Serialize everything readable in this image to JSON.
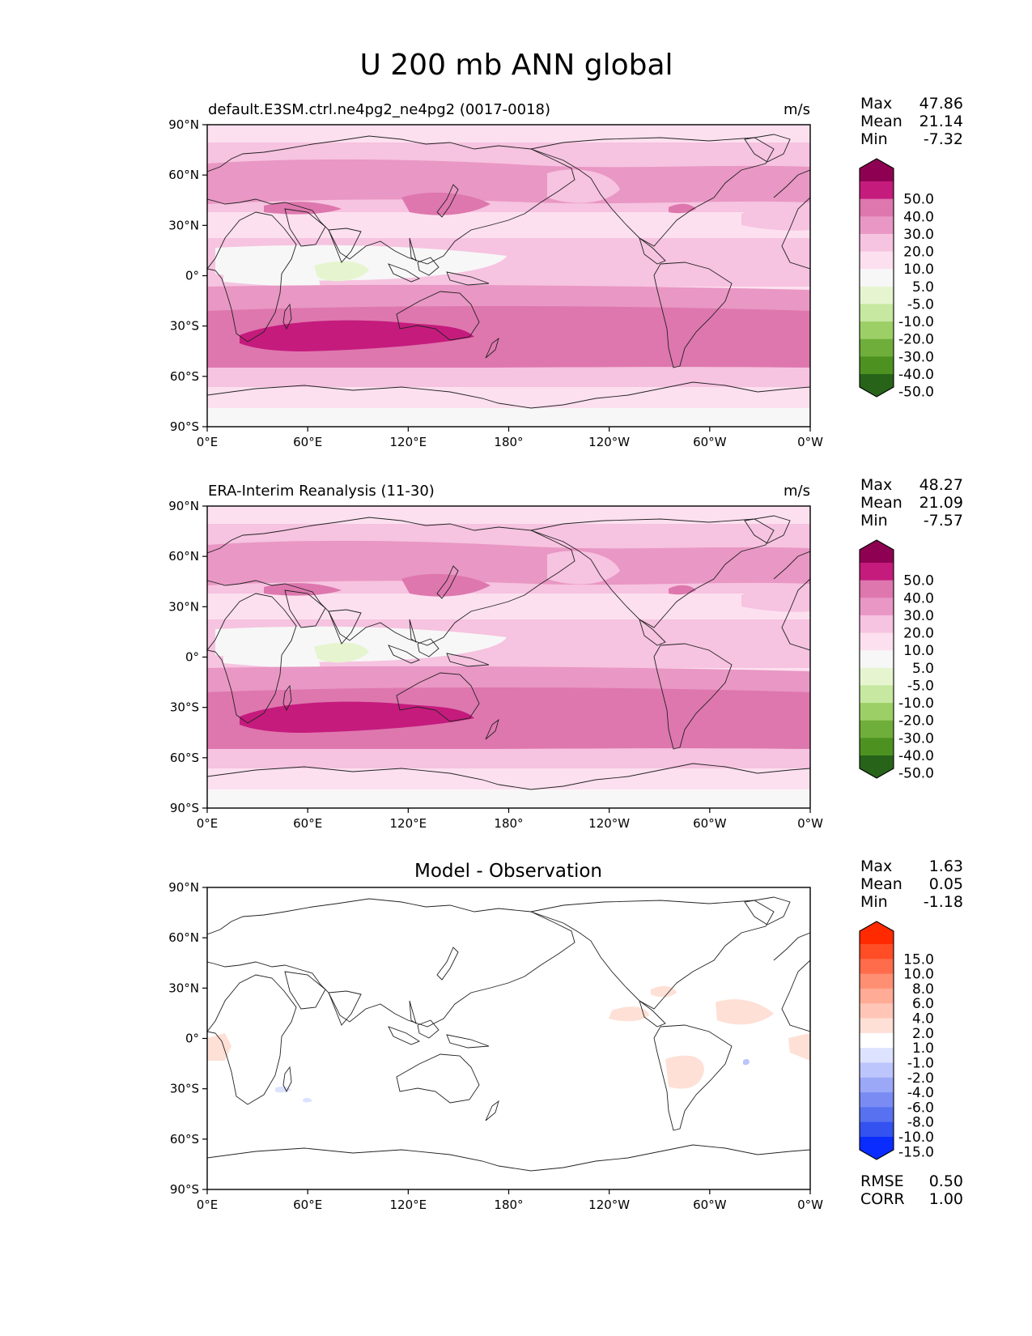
{
  "title": "U 200 mb ANN global",
  "x_ticks": [
    "0°E",
    "60°E",
    "120°E",
    "180°",
    "120°W",
    "60°W",
    "0°W"
  ],
  "y_ticks": [
    "90°N",
    "60°N",
    "30°N",
    "0°",
    "30°S",
    "60°S",
    "90°S"
  ],
  "stat_labels": {
    "max": "Max",
    "mean": "Mean",
    "min": "Min",
    "rmse": "RMSE",
    "corr": "CORR"
  },
  "chart_data": [
    {
      "type": "heatmap",
      "title": "default.E3SM.ctrl.ne4pg2_ne4pg2 (0017-0018)",
      "units": "m/s",
      "xlim": [
        0,
        360
      ],
      "ylim": [
        -90,
        90
      ],
      "stats": {
        "max": "47.86",
        "mean": "21.14",
        "min": "-7.32"
      },
      "colorbar": {
        "labels": [
          "50.0",
          "40.0",
          "30.0",
          "20.0",
          "10.0",
          "5.0",
          "-5.0",
          "-10.0",
          "-20.0",
          "-30.0",
          "-40.0",
          "-50.0"
        ],
        "colors": [
          "#8e0152",
          "#c51b7d",
          "#de77ae",
          "#e997c4",
          "#f6c3e0",
          "#fde0ef",
          "#f7f7f7",
          "#e6f5d0",
          "#c6e8a0",
          "#9cd067",
          "#6fae3a",
          "#4d9221",
          "#276419"
        ]
      }
    },
    {
      "type": "heatmap",
      "title": "ERA-Interim Reanalysis (11-30)",
      "units": "m/s",
      "xlim": [
        0,
        360
      ],
      "ylim": [
        -90,
        90
      ],
      "stats": {
        "max": "48.27",
        "mean": "21.09",
        "min": "-7.57"
      },
      "colorbar": {
        "labels": [
          "50.0",
          "40.0",
          "30.0",
          "20.0",
          "10.0",
          "5.0",
          "-5.0",
          "-10.0",
          "-20.0",
          "-30.0",
          "-40.0",
          "-50.0"
        ],
        "colors": [
          "#8e0152",
          "#c51b7d",
          "#de77ae",
          "#e997c4",
          "#f6c3e0",
          "#fde0ef",
          "#f7f7f7",
          "#e6f5d0",
          "#c6e8a0",
          "#9cd067",
          "#6fae3a",
          "#4d9221",
          "#276419"
        ]
      }
    },
    {
      "type": "heatmap",
      "title": "Model - Observation",
      "units": "",
      "xlim": [
        0,
        360
      ],
      "ylim": [
        -90,
        90
      ],
      "stats": {
        "max": "1.63",
        "mean": "0.05",
        "min": "-1.18",
        "rmse": "0.50",
        "corr": "1.00"
      },
      "colorbar": {
        "labels": [
          "15.0",
          "10.0",
          "8.0",
          "6.0",
          "4.0",
          "2.0",
          "1.0",
          "-1.0",
          "-2.0",
          "-4.0",
          "-6.0",
          "-8.0",
          "-10.0",
          "-15.0"
        ],
        "colors": [
          "#ff2a00",
          "#ff4d26",
          "#ff6c4c",
          "#ff8f73",
          "#ffab95",
          "#ffc6b7",
          "#fee0d6",
          "#ffffff",
          "#dde3ff",
          "#bcc5fc",
          "#9aa8f7",
          "#7a8cf4",
          "#5771f0",
          "#3352ef",
          "#0a2cff"
        ]
      }
    }
  ]
}
